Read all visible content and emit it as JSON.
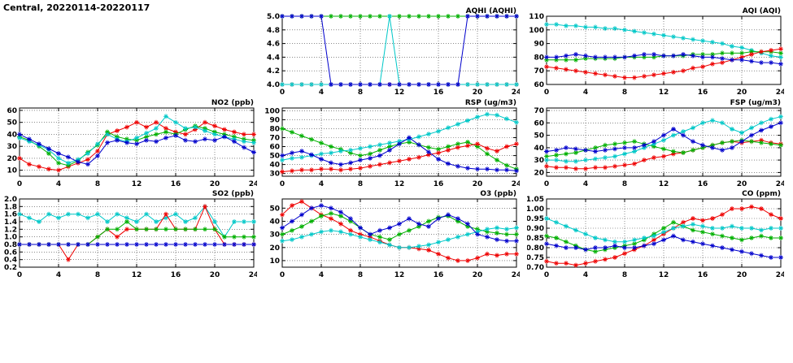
{
  "page": {
    "title": "Central, 20220114-20220117"
  },
  "colors": {
    "red": "#ee0000",
    "green": "#00b000",
    "blue": "#0000cc",
    "cyan": "#00c8c8",
    "grid": "#444444",
    "axis": "#000000"
  },
  "x_axis": {
    "min": 0,
    "max": 24,
    "ticks": [
      0,
      4,
      8,
      12,
      16,
      20,
      24
    ]
  },
  "chart_data": [
    {
      "id": "aqhi",
      "type": "line",
      "title": "AQHI (AQHI)",
      "xlabel": "",
      "ylabel": "",
      "grid": true,
      "legend": "none",
      "ylim": [
        4.0,
        5.0
      ],
      "yticks": [
        4.0,
        4.2,
        4.4,
        4.6,
        4.8,
        5.0
      ],
      "ydecimals": 1,
      "series": [
        {
          "name": "green",
          "color": "#00b000",
          "values": [
            5,
            5,
            5,
            5,
            5,
            5,
            5,
            5,
            5,
            5,
            5,
            5,
            5,
            5,
            5,
            5,
            5,
            5,
            5,
            5,
            5,
            5,
            5,
            5,
            5
          ]
        },
        {
          "name": "red",
          "color": "#ee0000",
          "values": [
            4,
            4,
            4,
            4,
            4,
            4,
            4,
            4,
            4,
            4,
            4,
            4,
            4,
            4,
            4,
            4,
            4,
            4,
            4,
            4,
            4,
            4,
            4,
            4,
            4
          ]
        },
        {
          "name": "cyan",
          "color": "#00c8c8",
          "values": [
            4,
            4,
            4,
            4,
            4,
            4,
            4,
            4,
            4,
            4,
            4,
            5,
            4,
            4,
            4,
            4,
            4,
            4,
            4,
            4,
            4,
            4,
            4,
            4,
            4
          ]
        },
        {
          "name": "blue",
          "color": "#0000cc",
          "values": [
            5,
            5,
            5,
            5,
            5,
            4,
            4,
            4,
            4,
            4,
            4,
            4,
            4,
            4,
            4,
            4,
            4,
            4,
            4,
            5,
            5,
            5,
            5,
            5,
            5
          ]
        }
      ]
    },
    {
      "id": "aqi",
      "type": "line",
      "title": "AQI (AQI)",
      "xlabel": "",
      "ylabel": "",
      "grid": true,
      "legend": "none",
      "ylim": [
        60,
        110
      ],
      "yticks": [
        60,
        70,
        80,
        90,
        100,
        110
      ],
      "ydecimals": 0,
      "series": [
        {
          "name": "cyan",
          "color": "#00c8c8",
          "values": [
            104,
            104,
            103,
            103,
            102,
            102,
            101,
            101,
            100,
            99,
            98,
            97,
            96,
            95,
            94,
            93,
            92,
            91,
            90,
            88,
            87,
            85,
            83,
            81,
            80
          ]
        },
        {
          "name": "green",
          "color": "#00b000",
          "values": [
            78,
            78,
            78,
            78,
            79,
            79,
            79,
            79,
            80,
            80,
            80,
            80,
            81,
            81,
            81,
            82,
            82,
            82,
            83,
            83,
            83,
            84,
            84,
            84,
            83
          ]
        },
        {
          "name": "red",
          "color": "#ee0000",
          "values": [
            73,
            72,
            71,
            70,
            69,
            68,
            67,
            66,
            65,
            65,
            66,
            67,
            68,
            69,
            70,
            72,
            73,
            75,
            76,
            78,
            80,
            82,
            84,
            85,
            86
          ]
        },
        {
          "name": "blue",
          "color": "#0000cc",
          "values": [
            80,
            80,
            81,
            82,
            81,
            80,
            80,
            80,
            80,
            81,
            82,
            82,
            81,
            81,
            82,
            81,
            80,
            80,
            79,
            78,
            78,
            77,
            76,
            76,
            75
          ]
        }
      ]
    },
    {
      "id": "no2",
      "type": "line",
      "title": "NO2 (ppb)",
      "xlabel": "",
      "ylabel": "",
      "grid": true,
      "legend": "none",
      "ylim": [
        5,
        62
      ],
      "yticks": [
        10,
        20,
        30,
        40,
        50,
        60
      ],
      "ydecimals": 0,
      "series": [
        {
          "name": "red",
          "color": "#ee0000",
          "values": [
            20,
            15,
            13,
            11,
            10,
            13,
            16,
            19,
            26,
            40,
            43,
            46,
            50,
            46,
            50,
            45,
            42,
            40,
            44,
            50,
            47,
            44,
            42,
            40,
            40
          ]
        },
        {
          "name": "green",
          "color": "#00b000",
          "values": [
            38,
            35,
            30,
            24,
            16,
            14,
            18,
            25,
            31,
            42,
            38,
            36,
            35,
            38,
            40,
            42,
            40,
            44,
            47,
            45,
            42,
            40,
            38,
            36,
            35
          ]
        },
        {
          "name": "cyan",
          "color": "#00c8c8",
          "values": [
            37,
            34,
            31,
            27,
            20,
            16,
            19,
            24,
            32,
            40,
            36,
            34,
            37,
            41,
            45,
            55,
            50,
            45,
            46,
            43,
            40,
            38,
            36,
            34,
            33
          ]
        },
        {
          "name": "blue",
          "color": "#0000cc",
          "values": [
            40,
            36,
            32,
            28,
            24,
            21,
            17,
            15,
            22,
            33,
            35,
            33,
            32,
            35,
            34,
            37,
            39,
            35,
            34,
            36,
            35,
            38,
            34,
            29,
            25
          ]
        }
      ]
    },
    {
      "id": "rsp",
      "type": "line",
      "title": "RSP (ug/m3)",
      "xlabel": "",
      "ylabel": "",
      "grid": true,
      "legend": "none",
      "ylim": [
        27,
        103
      ],
      "yticks": [
        30,
        40,
        50,
        60,
        70,
        80,
        90,
        100
      ],
      "ydecimals": 0,
      "series": [
        {
          "name": "green",
          "color": "#00b000",
          "values": [
            80,
            76,
            72,
            68,
            64,
            60,
            57,
            53,
            50,
            52,
            56,
            60,
            63,
            65,
            62,
            59,
            57,
            60,
            63,
            65,
            60,
            52,
            45,
            39,
            35
          ]
        },
        {
          "name": "cyan",
          "color": "#00c8c8",
          "values": [
            45,
            47,
            48,
            50,
            52,
            53,
            55,
            56,
            58,
            60,
            62,
            64,
            66,
            68,
            71,
            74,
            77,
            81,
            85,
            89,
            93,
            96,
            95,
            91,
            87
          ]
        },
        {
          "name": "red",
          "color": "#ee0000",
          "values": [
            32,
            33,
            34,
            34,
            35,
            35,
            34,
            35,
            36,
            38,
            40,
            42,
            44,
            46,
            48,
            51,
            53,
            56,
            59,
            61,
            63,
            58,
            55,
            60,
            63
          ]
        },
        {
          "name": "blue",
          "color": "#0000cc",
          "values": [
            50,
            53,
            55,
            51,
            46,
            42,
            40,
            42,
            45,
            47,
            50,
            56,
            63,
            70,
            62,
            54,
            46,
            41,
            38,
            36,
            35,
            35,
            34,
            34,
            33
          ]
        }
      ]
    },
    {
      "id": "fsp",
      "type": "line",
      "title": "FSP (ug/m3)",
      "xlabel": "",
      "ylabel": "",
      "grid": true,
      "legend": "none",
      "ylim": [
        17,
        72
      ],
      "yticks": [
        20,
        30,
        40,
        50,
        60,
        70
      ],
      "ydecimals": 0,
      "series": [
        {
          "name": "red",
          "color": "#ee0000",
          "values": [
            25,
            24,
            24,
            23,
            23,
            24,
            24,
            25,
            26,
            27,
            30,
            32,
            33,
            35,
            36,
            38,
            40,
            42,
            44,
            45,
            44,
            45,
            46,
            44,
            43
          ]
        },
        {
          "name": "green",
          "color": "#00b000",
          "values": [
            33,
            34,
            35,
            36,
            38,
            40,
            42,
            43,
            44,
            45,
            43,
            41,
            39,
            37,
            36,
            38,
            40,
            42,
            44,
            45,
            46,
            45,
            44,
            43,
            42
          ]
        },
        {
          "name": "cyan",
          "color": "#00c8c8",
          "values": [
            30,
            30,
            29,
            29,
            30,
            31,
            32,
            33,
            35,
            37,
            40,
            43,
            46,
            50,
            53,
            56,
            60,
            62,
            60,
            55,
            52,
            56,
            60,
            63,
            65
          ]
        },
        {
          "name": "blue",
          "color": "#0000cc",
          "values": [
            37,
            38,
            40,
            39,
            38,
            37,
            38,
            39,
            40,
            40,
            42,
            45,
            50,
            55,
            50,
            45,
            42,
            40,
            38,
            40,
            45,
            50,
            54,
            57,
            60
          ]
        }
      ]
    },
    {
      "id": "so2",
      "type": "line",
      "title": "SO2 (ppb)",
      "xlabel": "",
      "ylabel": "",
      "grid": true,
      "legend": "none",
      "ylim": [
        0.2,
        2.0
      ],
      "yticks": [
        0.2,
        0.4,
        0.6,
        0.8,
        1.0,
        1.2,
        1.4,
        1.6,
        1.8,
        2.0
      ],
      "ydecimals": 1,
      "series": [
        {
          "name": "cyan",
          "color": "#00c8c8",
          "values": [
            1.6,
            1.5,
            1.4,
            1.6,
            1.5,
            1.6,
            1.6,
            1.5,
            1.6,
            1.4,
            1.6,
            1.5,
            1.4,
            1.6,
            1.4,
            1.5,
            1.6,
            1.4,
            1.5,
            1.8,
            1.4,
            1.0,
            1.4,
            1.4,
            1.4
          ]
        },
        {
          "name": "red",
          "color": "#ee0000",
          "values": [
            0.8,
            0.8,
            0.8,
            0.8,
            0.8,
            0.4,
            0.8,
            0.8,
            1.0,
            1.2,
            1.0,
            1.2,
            1.2,
            1.2,
            1.2,
            1.6,
            1.2,
            1.2,
            1.2,
            1.8,
            1.2,
            0.8,
            0.8,
            0.8,
            0.8
          ]
        },
        {
          "name": "green",
          "color": "#00b000",
          "values": [
            0.8,
            0.8,
            0.8,
            0.8,
            0.8,
            0.8,
            0.8,
            0.8,
            1.0,
            1.2,
            1.2,
            1.4,
            1.2,
            1.2,
            1.2,
            1.2,
            1.2,
            1.2,
            1.2,
            1.2,
            1.2,
            1.0,
            1.0,
            1.0,
            1.0
          ]
        },
        {
          "name": "blue",
          "color": "#0000cc",
          "values": [
            0.8,
            0.8,
            0.8,
            0.8,
            0.8,
            0.8,
            0.8,
            0.8,
            0.8,
            0.8,
            0.8,
            0.8,
            0.8,
            0.8,
            0.8,
            0.8,
            0.8,
            0.8,
            0.8,
            0.8,
            0.8,
            0.8,
            0.8,
            0.8,
            0.8
          ]
        }
      ]
    },
    {
      "id": "o3",
      "type": "line",
      "title": "O3 (ppb)",
      "xlabel": "",
      "ylabel": "",
      "grid": true,
      "legend": "none",
      "ylim": [
        5,
        57
      ],
      "yticks": [
        10,
        20,
        30,
        40,
        50
      ],
      "ydecimals": 0,
      "series": [
        {
          "name": "red",
          "color": "#ee0000",
          "values": [
            45,
            52,
            55,
            50,
            45,
            42,
            38,
            33,
            30,
            28,
            25,
            22,
            20,
            20,
            19,
            18,
            15,
            12,
            10,
            10,
            12,
            15,
            14,
            15,
            15
          ]
        },
        {
          "name": "green",
          "color": "#00b000",
          "values": [
            30,
            33,
            36,
            40,
            44,
            46,
            44,
            40,
            35,
            30,
            28,
            26,
            30,
            33,
            36,
            40,
            43,
            44,
            40,
            36,
            34,
            32,
            31,
            30,
            30
          ]
        },
        {
          "name": "cyan",
          "color": "#00c8c8",
          "values": [
            25,
            26,
            28,
            30,
            32,
            33,
            32,
            30,
            28,
            26,
            24,
            22,
            20,
            20,
            21,
            22,
            24,
            26,
            28,
            30,
            32,
            34,
            35,
            34,
            35
          ]
        },
        {
          "name": "blue",
          "color": "#0000cc",
          "values": [
            35,
            40,
            45,
            50,
            52,
            50,
            47,
            42,
            35,
            30,
            33,
            35,
            38,
            42,
            38,
            36,
            42,
            45,
            42,
            38,
            30,
            28,
            26,
            25,
            25
          ]
        }
      ]
    },
    {
      "id": "co",
      "type": "line",
      "title": "CO (ppm)",
      "xlabel": "",
      "ylabel": "",
      "grid": true,
      "legend": "none",
      "ylim": [
        0.7,
        1.05
      ],
      "yticks": [
        0.7,
        0.75,
        0.8,
        0.85,
        0.9,
        0.95,
        1.0,
        1.05
      ],
      "ydecimals": 2,
      "series": [
        {
          "name": "red",
          "color": "#ee0000",
          "values": [
            0.73,
            0.72,
            0.72,
            0.71,
            0.72,
            0.73,
            0.74,
            0.75,
            0.77,
            0.79,
            0.81,
            0.84,
            0.87,
            0.9,
            0.93,
            0.95,
            0.94,
            0.95,
            0.97,
            1.0,
            1.0,
            1.01,
            1.0,
            0.97,
            0.95
          ]
        },
        {
          "name": "green",
          "color": "#00b000",
          "values": [
            0.86,
            0.85,
            0.83,
            0.81,
            0.79,
            0.78,
            0.79,
            0.8,
            0.81,
            0.82,
            0.84,
            0.87,
            0.9,
            0.93,
            0.91,
            0.89,
            0.88,
            0.87,
            0.86,
            0.85,
            0.84,
            0.85,
            0.86,
            0.85,
            0.85
          ]
        },
        {
          "name": "cyan",
          "color": "#00c8c8",
          "values": [
            0.95,
            0.93,
            0.91,
            0.89,
            0.87,
            0.85,
            0.84,
            0.83,
            0.83,
            0.84,
            0.85,
            0.86,
            0.88,
            0.9,
            0.91,
            0.92,
            0.91,
            0.9,
            0.9,
            0.91,
            0.9,
            0.9,
            0.89,
            0.9,
            0.9
          ]
        },
        {
          "name": "blue",
          "color": "#0000cc",
          "values": [
            0.82,
            0.81,
            0.8,
            0.8,
            0.79,
            0.8,
            0.8,
            0.81,
            0.8,
            0.8,
            0.81,
            0.82,
            0.84,
            0.86,
            0.84,
            0.83,
            0.82,
            0.81,
            0.8,
            0.79,
            0.78,
            0.77,
            0.76,
            0.75,
            0.75
          ]
        }
      ]
    }
  ]
}
